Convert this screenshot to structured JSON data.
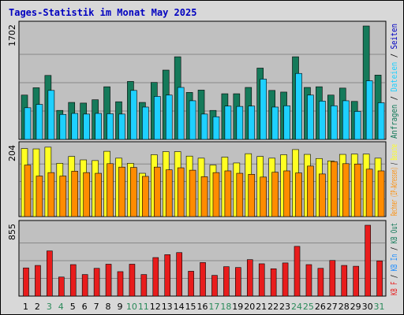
{
  "title": "Tages-Statistik im Monat May 2025",
  "colors": {
    "background": "#d8d8d8",
    "panel": "#c0c0c0",
    "title": "#0000c0",
    "anfragen": "#157a5a",
    "dateien": "#1ed0ff",
    "rechner": "#ff8c00",
    "besuche": "#ffff22",
    "kb": "#e81c1c",
    "weekend": "#2a8a5a"
  },
  "chart_data": [
    {
      "type": "bar",
      "panel": "top",
      "ymax_label": "1702",
      "ylim": [
        0,
        1702
      ],
      "legend_text": "Anfragen / Dateien / Seiten",
      "legend_parts": [
        {
          "text": "Anfragen",
          "color": "#157a5a"
        },
        {
          "text": " / ",
          "color": "#000000"
        },
        {
          "text": "Dateien",
          "color": "#1ed0ff"
        },
        {
          "text": " / ",
          "color": "#000000"
        },
        {
          "text": "Seiten",
          "color": "#0000c0"
        }
      ],
      "categories": [
        "1",
        "2",
        "3",
        "4",
        "5",
        "6",
        "7",
        "8",
        "9",
        "10",
        "11",
        "12",
        "13",
        "14",
        "15",
        "16",
        "17",
        "18",
        "19",
        "20",
        "21",
        "22",
        "23",
        "24",
        "25",
        "26",
        "27",
        "28",
        "29",
        "30",
        "31"
      ],
      "series": [
        {
          "name": "Anfragen",
          "values": [
            665,
            775,
            960,
            435,
            555,
            545,
            595,
            790,
            565,
            870,
            555,
            855,
            1040,
            1240,
            705,
            740,
            435,
            685,
            685,
            780,
            1070,
            735,
            710,
            1240,
            780,
            790,
            665,
            770,
            570,
            1702,
            965
          ]
        },
        {
          "name": "Dateien",
          "values": [
            475,
            525,
            735,
            375,
            390,
            380,
            390,
            385,
            380,
            735,
            485,
            645,
            665,
            780,
            580,
            380,
            340,
            500,
            495,
            500,
            905,
            485,
            505,
            990,
            665,
            575,
            505,
            580,
            420,
            880,
            550
          ]
        }
      ]
    },
    {
      "type": "bar",
      "panel": "middle",
      "ymax_label": "204",
      "ylim": [
        0,
        204
      ],
      "legend_text": "Rechner (IP-Adressen) / Besuche",
      "legend_parts": [
        {
          "text": "Rechner (IP-Adressen)",
          "color": "#ff8c00"
        },
        {
          "text": " / ",
          "color": "#000000"
        },
        {
          "text": "Besuche",
          "color": "#ffff22"
        }
      ],
      "categories": [
        "1",
        "2",
        "3",
        "4",
        "5",
        "6",
        "7",
        "8",
        "9",
        "10",
        "11",
        "12",
        "13",
        "14",
        "15",
        "16",
        "17",
        "18",
        "19",
        "20",
        "21",
        "22",
        "23",
        "24",
        "25",
        "26",
        "27",
        "28",
        "29",
        "30",
        "31"
      ],
      "series": [
        {
          "name": "Rechner",
          "values": [
            150,
            118,
            128,
            118,
            132,
            128,
            126,
            154,
            144,
            143,
            117,
            144,
            136,
            142,
            135,
            116,
            128,
            133,
            126,
            123,
            115,
            129,
            133,
            127,
            147,
            124,
            160,
            154,
            153,
            138,
            133
          ]
        },
        {
          "name": "Besuche",
          "values": [
            198,
            197,
            202,
            155,
            175,
            165,
            163,
            190,
            170,
            155,
            126,
            180,
            189,
            189,
            176,
            170,
            150,
            173,
            156,
            183,
            175,
            170,
            180,
            195,
            181,
            169,
            162,
            181,
            182,
            182,
            170
          ]
        }
      ]
    },
    {
      "type": "bar",
      "panel": "bottom",
      "ymax_label": "855",
      "ylim": [
        0,
        855
      ],
      "legend_text": "KB F / KB In / KB Out",
      "legend_parts": [
        {
          "text": "KB F",
          "color": "#e81c1c"
        },
        {
          "text": " / ",
          "color": "#000000"
        },
        {
          "text": "KB In",
          "color": "#1a8cff"
        },
        {
          "text": " / ",
          "color": "#000000"
        },
        {
          "text": "KB Out",
          "color": "#157a5a"
        }
      ],
      "categories": [
        "1",
        "2",
        "3",
        "4",
        "5",
        "6",
        "7",
        "8",
        "9",
        "10",
        "11",
        "12",
        "13",
        "14",
        "15",
        "16",
        "17",
        "18",
        "19",
        "20",
        "21",
        "22",
        "23",
        "24",
        "25",
        "26",
        "27",
        "28",
        "29",
        "30",
        "31"
      ],
      "series": [
        {
          "name": "KB F",
          "values": [
            340,
            370,
            545,
            230,
            380,
            260,
            335,
            385,
            295,
            385,
            260,
            465,
            500,
            525,
            300,
            405,
            250,
            355,
            345,
            440,
            390,
            330,
            400,
            600,
            380,
            335,
            430,
            370,
            360,
            855,
            425
          ]
        }
      ]
    }
  ],
  "x_labels": [
    "1",
    "2",
    "3",
    "4",
    "5",
    "6",
    "7",
    "8",
    "9",
    "10",
    "11",
    "12",
    "13",
    "14",
    "15",
    "16",
    "17",
    "18",
    "19",
    "20",
    "21",
    "22",
    "23",
    "24",
    "25",
    "26",
    "27",
    "28",
    "29",
    "30",
    "31"
  ],
  "weekend_days": [
    3,
    4,
    10,
    11,
    17,
    18,
    24,
    25,
    31
  ]
}
